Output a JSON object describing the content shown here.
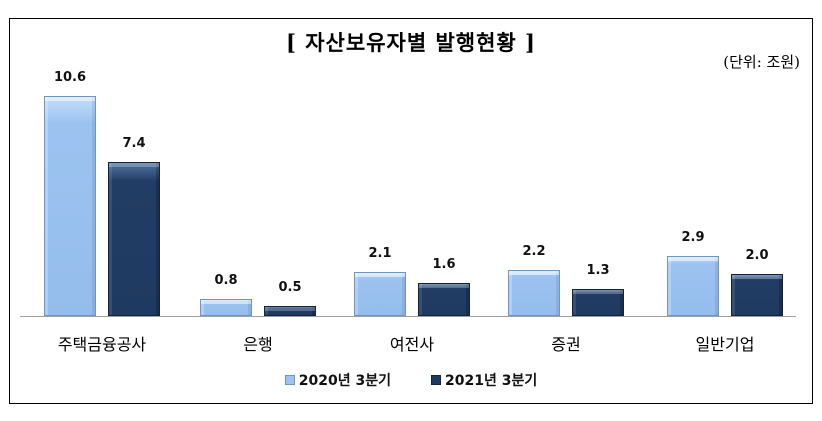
{
  "chart_data": {
    "type": "bar",
    "title": "[ 자산보유자별 발행현황 ]",
    "unit_label": "(단위: 조원)",
    "categories": [
      "주택금융공사",
      "은행",
      "여전사",
      "증권",
      "일반기업"
    ],
    "series": [
      {
        "name": "2020년 3분기",
        "color": "#9cc3f0",
        "values": [
          10.6,
          0.8,
          2.1,
          2.2,
          2.9
        ]
      },
      {
        "name": "2021년 3분기",
        "color": "#1f3a60",
        "values": [
          7.4,
          0.5,
          1.6,
          1.3,
          2.0
        ]
      }
    ],
    "value_labels": [
      [
        "10.6",
        "0.8",
        "2.1",
        "2.2",
        "2.9"
      ],
      [
        "7.4",
        "0.5",
        "1.6",
        "1.3",
        "2.0"
      ]
    ],
    "xlabel": "",
    "ylabel": "",
    "ylim": [
      0,
      10.6
    ],
    "grid": false,
    "legend_position": "bottom"
  }
}
